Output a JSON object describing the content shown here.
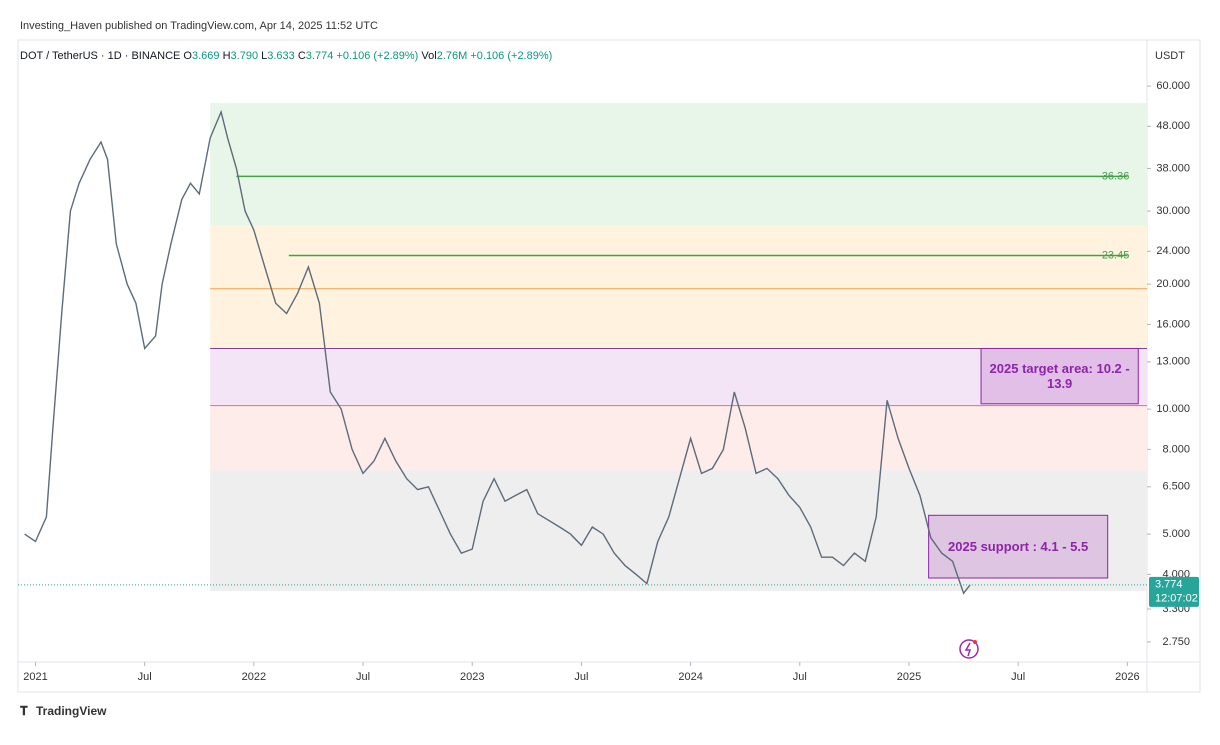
{
  "header": {
    "publisher": "Investing_Haven published on TradingView.com, Apr 14, 2025 11:52 UTC",
    "symbol": "DOT / TetherUS · 1D · BINANCE",
    "ohlc": [
      {
        "label": "O",
        "value": "3.669"
      },
      {
        "label": "H",
        "value": "3.790"
      },
      {
        "label": "L",
        "value": "3.633"
      },
      {
        "label": "C",
        "value": "3.774"
      },
      {
        "label": "",
        "value": "+0.106 (+2.89%)"
      },
      {
        "label": "Vol",
        "value": "2.76M"
      },
      {
        "label": "",
        "value": "+0.106 (+2.89%)"
      }
    ],
    "currency": "USDT",
    "last_price": "3.774",
    "countdown": "12:07:02",
    "footer": "TradingView"
  },
  "chart_data": {
    "type": "line",
    "log_scale": true,
    "color": "#5d6b7a",
    "x": [
      2020.95,
      2021.0,
      2021.05,
      2021.08,
      2021.12,
      2021.16,
      2021.2,
      2021.25,
      2021.3,
      2021.33,
      2021.37,
      2021.42,
      2021.46,
      2021.5,
      2021.55,
      2021.58,
      2021.62,
      2021.67,
      2021.71,
      2021.75,
      2021.8,
      2021.85,
      2021.88,
      2021.92,
      2021.96,
      2022.0,
      2022.05,
      2022.1,
      2022.15,
      2022.2,
      2022.25,
      2022.3,
      2022.35,
      2022.4,
      2022.45,
      2022.5,
      2022.55,
      2022.6,
      2022.65,
      2022.7,
      2022.75,
      2022.8,
      2022.85,
      2022.9,
      2022.95,
      2023.0,
      2023.05,
      2023.1,
      2023.15,
      2023.2,
      2023.25,
      2023.3,
      2023.4,
      2023.45,
      2023.5,
      2023.55,
      2023.6,
      2023.65,
      2023.7,
      2023.75,
      2023.8,
      2023.85,
      2023.9,
      2024.0,
      2024.05,
      2024.1,
      2024.15,
      2024.2,
      2024.25,
      2024.3,
      2024.35,
      2024.4,
      2024.45,
      2024.5,
      2024.55,
      2024.6,
      2024.65,
      2024.7,
      2024.75,
      2024.8,
      2024.85,
      2024.9,
      2024.95,
      2025.0,
      2025.05,
      2025.1,
      2025.15,
      2025.2,
      2025.25,
      2025.28
    ],
    "values": [
      5.0,
      4.8,
      5.5,
      9,
      17,
      30,
      35,
      40,
      44,
      40,
      25,
      20,
      18,
      14,
      15,
      20,
      25,
      32,
      35,
      33,
      45,
      52,
      45,
      38,
      30,
      27,
      22,
      18,
      17,
      19,
      22,
      18,
      11,
      10,
      8,
      7,
      7.5,
      8.5,
      7.5,
      6.8,
      6.4,
      6.5,
      5.7,
      5.0,
      4.5,
      4.6,
      6.0,
      6.8,
      6.0,
      6.2,
      6.4,
      5.6,
      5.2,
      5.0,
      4.7,
      5.2,
      5.0,
      4.5,
      4.2,
      4.0,
      3.8,
      4.8,
      5.5,
      8.5,
      7.0,
      7.2,
      8.0,
      11.0,
      9.0,
      7.0,
      7.2,
      6.8,
      6.2,
      5.8,
      5.2,
      4.4,
      4.4,
      4.2,
      4.5,
      4.3,
      5.5,
      10.5,
      8.5,
      7.2,
      6.2,
      4.9,
      4.5,
      4.3,
      3.6,
      3.774
    ],
    "xlim": [
      2020.92,
      2026.09
    ],
    "xticks": [
      {
        "value": 2021,
        "label": "2021"
      },
      {
        "value": 2021.5,
        "label": "Jul"
      },
      {
        "value": 2022,
        "label": "2022"
      },
      {
        "value": 2022.5,
        "label": "Jul"
      },
      {
        "value": 2023,
        "label": "2023"
      },
      {
        "value": 2023.5,
        "label": "Jul"
      },
      {
        "value": 2024,
        "label": "2024"
      },
      {
        "value": 2024.5,
        "label": "Jul"
      },
      {
        "value": 2025,
        "label": "2025"
      },
      {
        "value": 2025.5,
        "label": "Jul"
      },
      {
        "value": 2026,
        "label": "2026"
      }
    ],
    "ylim": [
      2.46,
      63.8
    ],
    "yticks": [
      {
        "value": 2.75,
        "label": "2.750"
      },
      {
        "value": 3.3,
        "label": "3.300"
      },
      {
        "value": 4,
        "label": "4.000"
      },
      {
        "value": 5,
        "label": "5.000"
      },
      {
        "value": 6.5,
        "label": "6.500"
      },
      {
        "value": 8,
        "label": "8.000"
      },
      {
        "value": 10,
        "label": "10.000"
      },
      {
        "value": 13,
        "label": "13.000"
      },
      {
        "value": 16,
        "label": "16.000"
      },
      {
        "value": 20,
        "label": "20.000"
      },
      {
        "value": 24,
        "label": "24.000"
      },
      {
        "value": 30,
        "label": "30.000"
      },
      {
        "value": 38,
        "label": "38.000"
      },
      {
        "value": 48,
        "label": "48.000"
      },
      {
        "value": 60,
        "label": "60.000"
      }
    ],
    "zones": [
      {
        "y": [
          54.6,
          27.7
        ],
        "x": [
          2021.8,
          2026.09
        ],
        "color": "#e8f5e9"
      },
      {
        "y": [
          27.7,
          14.0
        ],
        "x": [
          2021.8,
          2026.09
        ],
        "color": "#fff3e0"
      },
      {
        "y": [
          14.0,
          10.2
        ],
        "x": [
          2021.8,
          2026.09
        ],
        "color": "#f3e5f5"
      },
      {
        "y": [
          10.2,
          7.13
        ],
        "x": [
          2021.8,
          2026.09
        ],
        "color": "#fdecea"
      },
      {
        "y": [
          7.13,
          3.65
        ],
        "x": [
          2021.8,
          2026.09
        ],
        "color": "#eeeeee"
      }
    ],
    "levels": [
      {
        "y": 36.36,
        "x": [
          2021.92,
          2026.0
        ],
        "color": "#43a047"
      },
      {
        "y": 23.45,
        "x": [
          2022.16,
          2026.0
        ],
        "color": "#43a047"
      }
    ],
    "guides": [
      {
        "y": 19.5,
        "x": [
          2021.8,
          2026.09
        ],
        "color": "#f0a050"
      },
      {
        "y": 14.0,
        "x": [
          2021.8,
          2026.09
        ],
        "color": "#7b3fa0"
      },
      {
        "y": 10.2,
        "x": [
          2021.8,
          2026.09
        ],
        "color": "#e57373"
      }
    ],
    "last": 3.774,
    "annotations": [
      {
        "text": "2025 target area: 10.2 - 13.9",
        "y": [
          10.3,
          14.0
        ],
        "x": [
          2025.33,
          2026.05
        ]
      },
      {
        "text": "2025 support : 4.1 - 5.5",
        "y": [
          3.92,
          5.55
        ],
        "x": [
          2025.09,
          2025.91
        ]
      }
    ]
  }
}
